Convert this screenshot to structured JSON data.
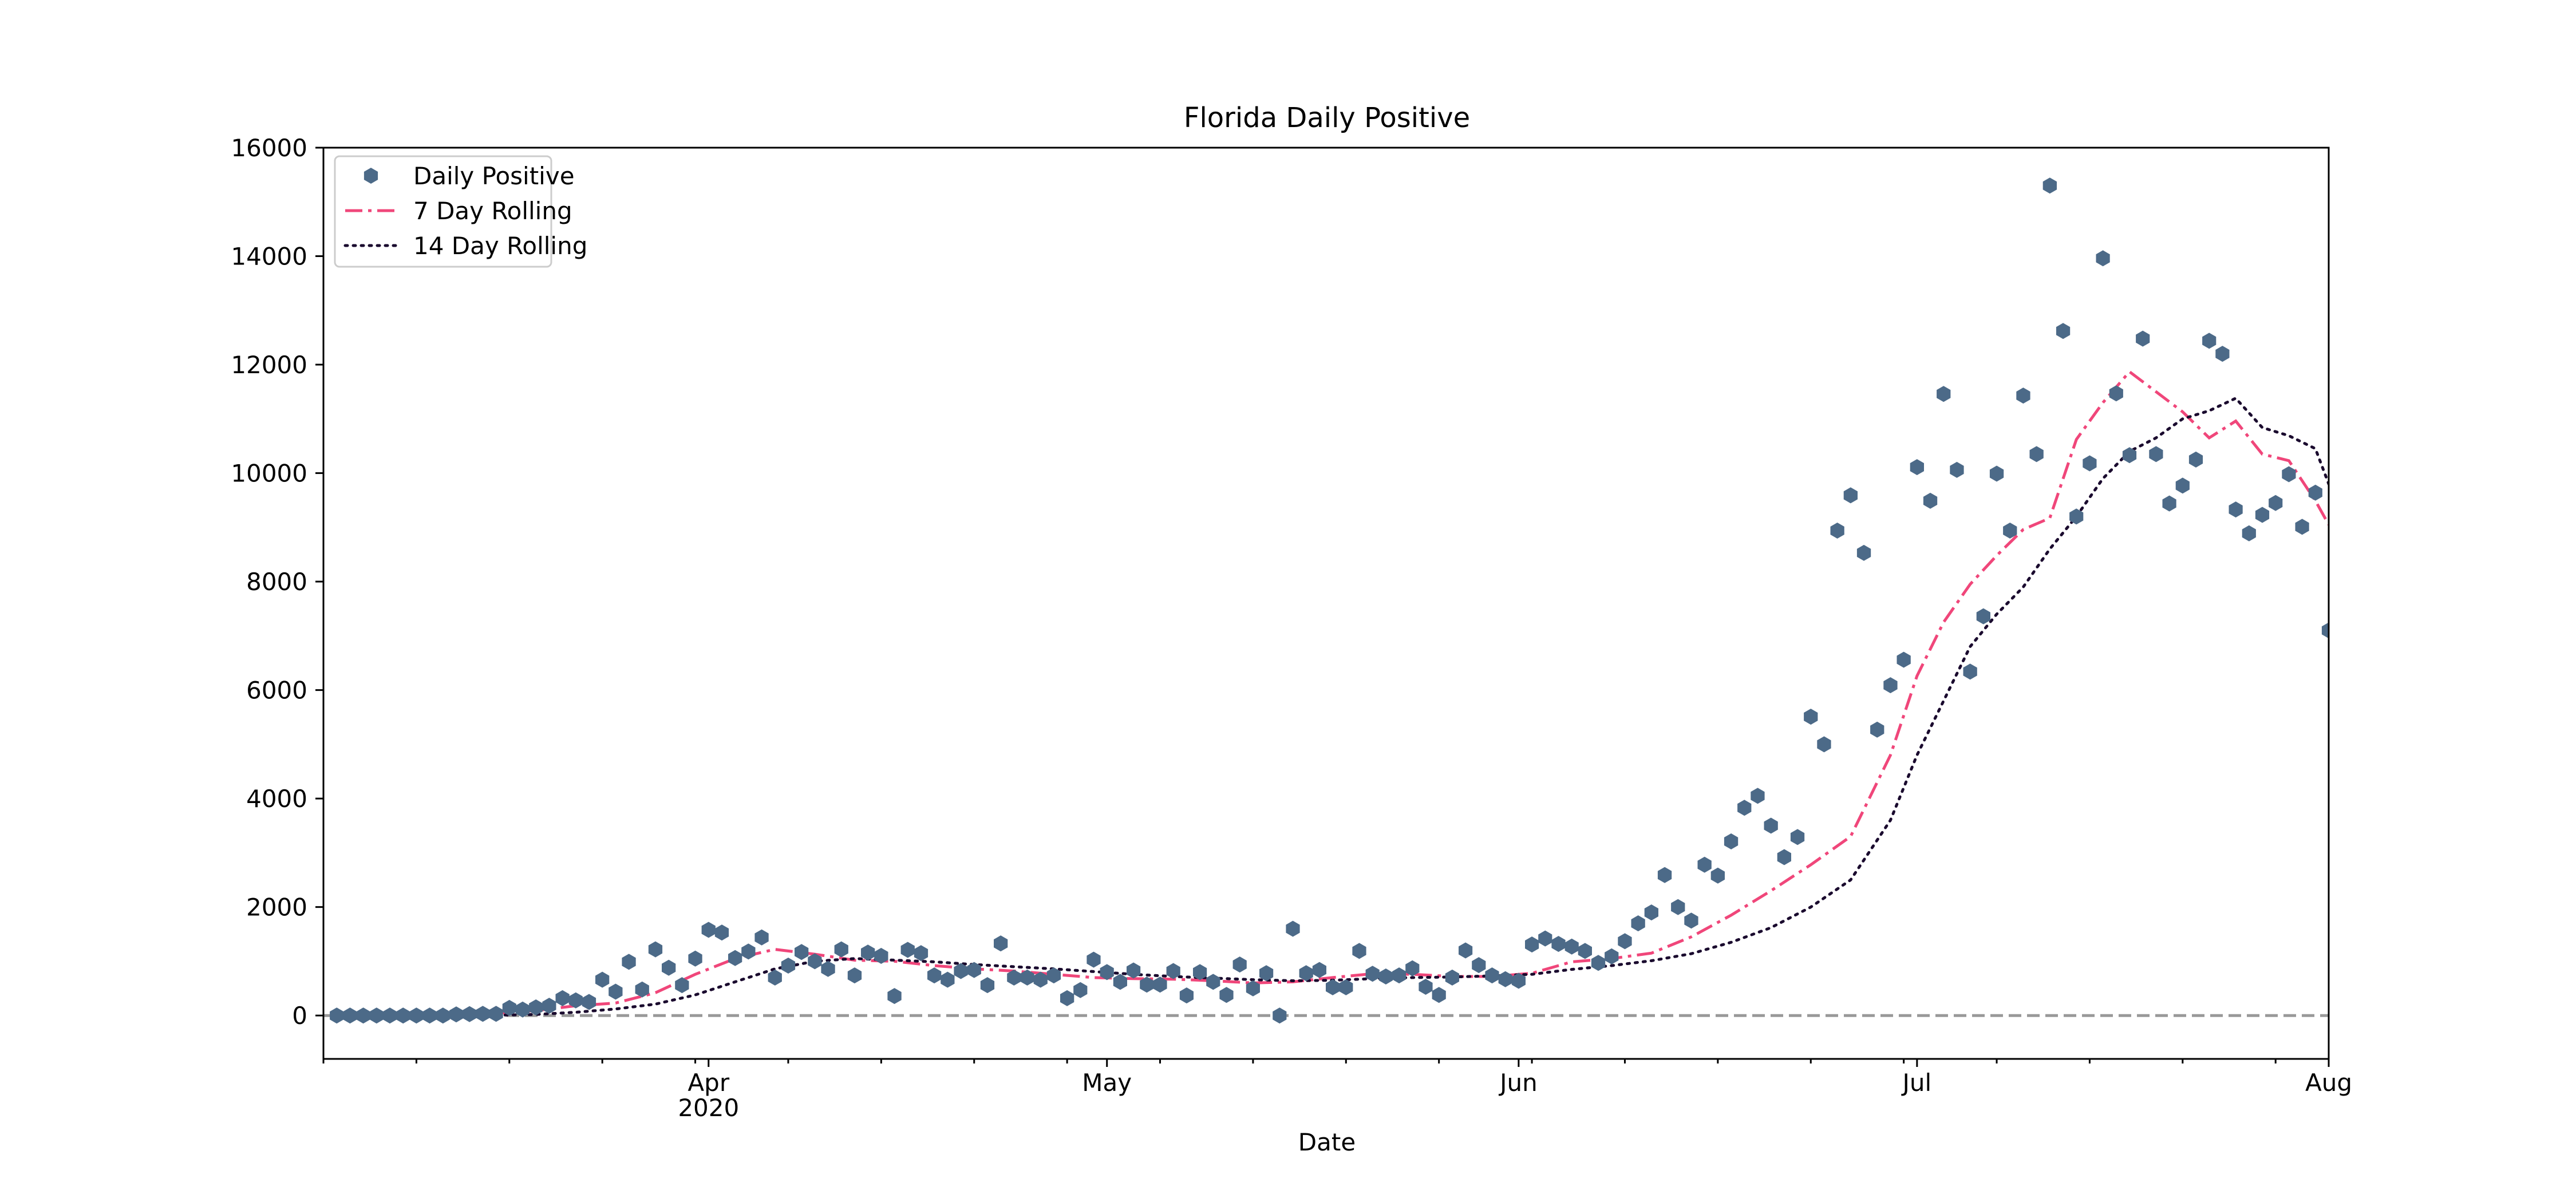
{
  "chart_data": {
    "type": "scatter",
    "title": "Florida Daily Positive",
    "xlabel": "Date",
    "ylabel": "",
    "ylim": [
      -800,
      16000
    ],
    "xlim": [
      "2020-03-03",
      "2020-08-01"
    ],
    "yticks": [
      0,
      2000,
      4000,
      6000,
      8000,
      10000,
      12000,
      14000,
      16000
    ],
    "ytick_labels": [
      "0",
      "2000",
      "4000",
      "6000",
      "8000",
      "10000",
      "12000",
      "14000",
      "16000"
    ],
    "xticks": [
      {
        "date": "2020-04-01",
        "label": "Apr",
        "sublabel": "2020"
      },
      {
        "date": "2020-05-01",
        "label": "May",
        "sublabel": ""
      },
      {
        "date": "2020-06-01",
        "label": "Jun",
        "sublabel": ""
      },
      {
        "date": "2020-07-01",
        "label": "Jul",
        "sublabel": ""
      },
      {
        "date": "2020-08-01",
        "label": "Aug",
        "sublabel": ""
      }
    ],
    "minor_tick_interval_days": 7,
    "reference_line": {
      "y": 0,
      "style": "dashed",
      "color": "#999999"
    },
    "legend": {
      "placement": "top-left",
      "entries": [
        "Daily Positive",
        "7 Day Rolling",
        "14 Day Rolling"
      ]
    },
    "grid": false,
    "series": [
      {
        "name": "Daily Positive",
        "kind": "scatter",
        "marker": "hexagon",
        "color": "#4c6a88",
        "x": [
          "2020-03-04",
          "2020-03-05",
          "2020-03-06",
          "2020-03-07",
          "2020-03-08",
          "2020-03-09",
          "2020-03-10",
          "2020-03-11",
          "2020-03-12",
          "2020-03-13",
          "2020-03-14",
          "2020-03-15",
          "2020-03-16",
          "2020-03-17",
          "2020-03-18",
          "2020-03-19",
          "2020-03-20",
          "2020-03-21",
          "2020-03-22",
          "2020-03-23",
          "2020-03-24",
          "2020-03-25",
          "2020-03-26",
          "2020-03-27",
          "2020-03-28",
          "2020-03-29",
          "2020-03-30",
          "2020-03-31",
          "2020-04-01",
          "2020-04-02",
          "2020-04-03",
          "2020-04-04",
          "2020-04-05",
          "2020-04-06",
          "2020-04-07",
          "2020-04-08",
          "2020-04-09",
          "2020-04-10",
          "2020-04-11",
          "2020-04-12",
          "2020-04-13",
          "2020-04-14",
          "2020-04-15",
          "2020-04-16",
          "2020-04-17",
          "2020-04-18",
          "2020-04-19",
          "2020-04-20",
          "2020-04-21",
          "2020-04-22",
          "2020-04-23",
          "2020-04-24",
          "2020-04-25",
          "2020-04-26",
          "2020-04-27",
          "2020-04-28",
          "2020-04-29",
          "2020-04-30",
          "2020-05-01",
          "2020-05-02",
          "2020-05-03",
          "2020-05-04",
          "2020-05-05",
          "2020-05-06",
          "2020-05-07",
          "2020-05-08",
          "2020-05-09",
          "2020-05-10",
          "2020-05-11",
          "2020-05-12",
          "2020-05-13",
          "2020-05-14",
          "2020-05-15",
          "2020-05-16",
          "2020-05-17",
          "2020-05-18",
          "2020-05-19",
          "2020-05-20",
          "2020-05-21",
          "2020-05-22",
          "2020-05-23",
          "2020-05-24",
          "2020-05-25",
          "2020-05-26",
          "2020-05-27",
          "2020-05-28",
          "2020-05-29",
          "2020-05-30",
          "2020-05-31",
          "2020-06-01",
          "2020-06-02",
          "2020-06-03",
          "2020-06-04",
          "2020-06-05",
          "2020-06-06",
          "2020-06-07",
          "2020-06-08",
          "2020-06-09",
          "2020-06-10",
          "2020-06-11",
          "2020-06-12",
          "2020-06-13",
          "2020-06-14",
          "2020-06-15",
          "2020-06-16",
          "2020-06-17",
          "2020-06-18",
          "2020-06-19",
          "2020-06-20",
          "2020-06-21",
          "2020-06-22",
          "2020-06-23",
          "2020-06-24",
          "2020-06-25",
          "2020-06-26",
          "2020-06-27",
          "2020-06-28",
          "2020-06-29",
          "2020-06-30",
          "2020-07-01",
          "2020-07-02",
          "2020-07-03",
          "2020-07-04",
          "2020-07-05",
          "2020-07-06",
          "2020-07-07",
          "2020-07-08",
          "2020-07-09",
          "2020-07-10",
          "2020-07-11",
          "2020-07-12",
          "2020-07-13",
          "2020-07-14",
          "2020-07-15",
          "2020-07-16",
          "2020-07-17",
          "2020-07-18",
          "2020-07-19",
          "2020-07-20",
          "2020-07-21",
          "2020-07-22",
          "2020-07-23",
          "2020-07-24",
          "2020-07-25",
          "2020-07-26",
          "2020-07-27",
          "2020-07-28",
          "2020-07-29",
          "2020-07-30",
          "2020-07-31",
          "2020-08-01"
        ],
        "values": [
          0,
          0,
          0,
          0,
          0,
          0,
          0,
          0,
          0,
          20,
          25,
          30,
          30,
          140,
          110,
          150,
          180,
          320,
          280,
          250,
          660,
          440,
          990,
          480,
          1220,
          880,
          560,
          1050,
          1580,
          1530,
          1060,
          1180,
          1440,
          700,
          920,
          1170,
          1000,
          860,
          1220,
          740,
          1160,
          1100,
          360,
          1210,
          1150,
          740,
          660,
          820,
          840,
          560,
          1330,
          700,
          700,
          660,
          740,
          320,
          470,
          1030,
          800,
          620,
          830,
          570,
          570,
          820,
          370,
          800,
          620,
          380,
          940,
          500,
          780,
          0,
          1600,
          780,
          840,
          520,
          520,
          1190,
          770,
          720,
          740,
          870,
          530,
          380,
          700,
          1200,
          930,
          740,
          670,
          640,
          1310,
          1420,
          1320,
          1270,
          1190,
          970,
          1090,
          1370,
          1700,
          1900,
          2590,
          2000,
          1750,
          2780,
          2580,
          3210,
          3830,
          4050,
          3500,
          2920,
          3290,
          5510,
          5000,
          8940,
          9590,
          8530,
          5270,
          6090,
          6560,
          10110,
          9490,
          11460,
          10060,
          6340,
          7360,
          9990,
          8940,
          11430,
          10350,
          15300,
          12620,
          9200,
          10180,
          13960,
          11470,
          10330,
          12480,
          10350,
          9440,
          9770,
          10250,
          12440,
          12200,
          9330,
          8890,
          9230,
          9450,
          9980,
          9010,
          9640,
          7100
        ]
      },
      {
        "name": "7 Day Rolling",
        "kind": "line",
        "linestyle": "dashdot",
        "color": "#f0467a",
        "x": [
          "2020-03-04",
          "2020-03-12",
          "2020-03-16",
          "2020-03-19",
          "2020-03-22",
          "2020-03-25",
          "2020-03-28",
          "2020-03-31",
          "2020-04-03",
          "2020-04-06",
          "2020-04-09",
          "2020-04-12",
          "2020-04-15",
          "2020-04-18",
          "2020-04-21",
          "2020-04-24",
          "2020-04-27",
          "2020-04-30",
          "2020-05-03",
          "2020-05-06",
          "2020-05-09",
          "2020-05-12",
          "2020-05-15",
          "2020-05-18",
          "2020-05-21",
          "2020-05-24",
          "2020-05-27",
          "2020-05-30",
          "2020-06-02",
          "2020-06-05",
          "2020-06-08",
          "2020-06-11",
          "2020-06-14",
          "2020-06-17",
          "2020-06-20",
          "2020-06-23",
          "2020-06-26",
          "2020-06-29",
          "2020-07-01",
          "2020-07-03",
          "2020-07-05",
          "2020-07-07",
          "2020-07-09",
          "2020-07-11",
          "2020-07-13",
          "2020-07-15",
          "2020-07-17",
          "2020-07-19",
          "2020-07-21",
          "2020-07-23",
          "2020-07-25",
          "2020-07-27",
          "2020-07-29",
          "2020-07-31",
          "2020-08-01"
        ],
        "values": [
          0,
          0,
          40,
          90,
          180,
          230,
          420,
          760,
          1050,
          1220,
          1130,
          1020,
          1000,
          920,
          860,
          820,
          760,
          700,
          680,
          670,
          640,
          600,
          620,
          700,
          770,
          760,
          720,
          720,
          780,
          990,
          1050,
          1150,
          1450,
          1850,
          2300,
          2780,
          3300,
          4800,
          6260,
          7250,
          7950,
          8480,
          8960,
          9170,
          10620,
          11300,
          11870,
          11500,
          11130,
          10650,
          10960,
          10350,
          10230,
          9490,
          9050
        ]
      },
      {
        "name": "14 Day Rolling",
        "kind": "line",
        "linestyle": "dotted",
        "color": "#1a0a2e",
        "x": [
          "2020-03-04",
          "2020-03-15",
          "2020-03-19",
          "2020-03-22",
          "2020-03-25",
          "2020-03-28",
          "2020-03-31",
          "2020-04-03",
          "2020-04-06",
          "2020-04-09",
          "2020-04-12",
          "2020-04-15",
          "2020-04-18",
          "2020-04-21",
          "2020-04-24",
          "2020-04-27",
          "2020-04-30",
          "2020-05-03",
          "2020-05-06",
          "2020-05-09",
          "2020-05-12",
          "2020-05-15",
          "2020-05-18",
          "2020-05-21",
          "2020-05-24",
          "2020-05-27",
          "2020-05-30",
          "2020-06-02",
          "2020-06-05",
          "2020-06-08",
          "2020-06-11",
          "2020-06-14",
          "2020-06-17",
          "2020-06-20",
          "2020-06-23",
          "2020-06-26",
          "2020-06-29",
          "2020-07-01",
          "2020-07-03",
          "2020-07-05",
          "2020-07-07",
          "2020-07-09",
          "2020-07-11",
          "2020-07-13",
          "2020-07-15",
          "2020-07-17",
          "2020-07-19",
          "2020-07-21",
          "2020-07-23",
          "2020-07-25",
          "2020-07-27",
          "2020-07-29",
          "2020-07-31",
          "2020-08-01"
        ],
        "values": [
          0,
          0,
          20,
          60,
          120,
          210,
          380,
          620,
          860,
          1000,
          1050,
          1020,
          990,
          940,
          900,
          860,
          810,
          760,
          720,
          690,
          660,
          640,
          650,
          680,
          700,
          710,
          730,
          760,
          850,
          920,
          1010,
          1140,
          1350,
          1620,
          2000,
          2500,
          3600,
          4800,
          5800,
          6800,
          7400,
          7900,
          8600,
          9200,
          9900,
          10400,
          10650,
          11000,
          11150,
          11380,
          10840,
          10690,
          10450,
          9800
        ]
      }
    ]
  }
}
